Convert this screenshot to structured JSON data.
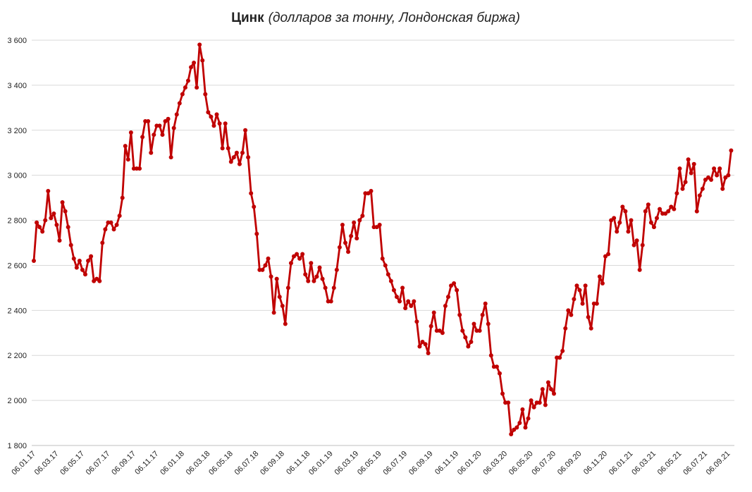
{
  "chart_data": {
    "type": "line",
    "title": "Цинк",
    "subtitle": "(долларов за тонну, Лондонская биржа)",
    "categories": [
      "06.01.17",
      null,
      null,
      null,
      null,
      null,
      null,
      null,
      "06.03.17",
      null,
      null,
      null,
      null,
      null,
      null,
      null,
      null,
      "06.05.17",
      null,
      null,
      null,
      null,
      null,
      null,
      null,
      null,
      "06.07.17",
      null,
      null,
      null,
      null,
      null,
      null,
      null,
      null,
      "06.09.17",
      null,
      null,
      null,
      null,
      null,
      null,
      null,
      "06.11.17",
      null,
      null,
      null,
      null,
      null,
      null,
      null,
      null,
      "06.01.18",
      null,
      null,
      null,
      null,
      null,
      null,
      null,
      null,
      "06.03.18",
      null,
      null,
      null,
      null,
      null,
      null,
      null,
      "06.05.18",
      null,
      null,
      null,
      null,
      null,
      null,
      null,
      null,
      "06.07.18",
      null,
      null,
      null,
      null,
      null,
      null,
      null,
      null,
      "06.09.18",
      null,
      null,
      null,
      null,
      null,
      null,
      null,
      null,
      "06.11.18",
      null,
      null,
      null,
      null,
      null,
      null,
      null,
      "06.01.19",
      null,
      null,
      null,
      null,
      null,
      null,
      null,
      null,
      "06.03.19",
      null,
      null,
      null,
      null,
      null,
      null,
      null,
      "06.05.19",
      null,
      null,
      null,
      null,
      null,
      null,
      null,
      null,
      "06.07.19",
      null,
      null,
      null,
      null,
      null,
      null,
      null,
      null,
      "06.09.19",
      null,
      null,
      null,
      null,
      null,
      null,
      null,
      null,
      "06.11.19",
      null,
      null,
      null,
      null,
      null,
      null,
      null,
      "06.01.20",
      null,
      null,
      null,
      null,
      null,
      null,
      null,
      null,
      "06.03.20",
      null,
      null,
      null,
      null,
      null,
      null,
      null,
      null,
      "06.05.20",
      null,
      null,
      null,
      null,
      null,
      null,
      null,
      "06.07.20",
      null,
      null,
      null,
      null,
      null,
      null,
      null,
      null,
      "06.09.20",
      null,
      null,
      null,
      null,
      null,
      null,
      null,
      null,
      "06.11.20",
      null,
      null,
      null,
      null,
      null,
      null,
      null,
      null,
      "06.01.21",
      null,
      null,
      null,
      null,
      null,
      null,
      null,
      "06.03.21",
      null,
      null,
      null,
      null,
      null,
      null,
      null,
      null,
      "06.05.21",
      null,
      null,
      null,
      null,
      null,
      null,
      null,
      null,
      "06.07.21",
      null,
      null,
      null,
      null,
      null,
      null,
      null,
      "06.09.21",
      null
    ],
    "values": [
      2620,
      2790,
      2770,
      2750,
      2800,
      2930,
      2810,
      2830,
      2780,
      2710,
      2880,
      2840,
      2770,
      2690,
      2630,
      2590,
      2620,
      2580,
      2560,
      2620,
      2640,
      2530,
      2540,
      2530,
      2700,
      2760,
      2790,
      2790,
      2760,
      2780,
      2820,
      2900,
      3130,
      3070,
      3190,
      3030,
      3030,
      3030,
      3170,
      3240,
      3240,
      3100,
      3180,
      3220,
      3220,
      3180,
      3240,
      3250,
      3080,
      3210,
      3270,
      3320,
      3360,
      3390,
      3420,
      3480,
      3500,
      3390,
      3580,
      3510,
      3360,
      3280,
      3260,
      3220,
      3270,
      3230,
      3120,
      3230,
      3120,
      3060,
      3080,
      3100,
      3050,
      3100,
      3200,
      3080,
      2920,
      2860,
      2740,
      2580,
      2580,
      2600,
      2630,
      2550,
      2390,
      2540,
      2460,
      2420,
      2340,
      2500,
      2610,
      2640,
      2650,
      2630,
      2650,
      2560,
      2530,
      2610,
      2530,
      2550,
      2590,
      2540,
      2500,
      2440,
      2440,
      2500,
      2580,
      2680,
      2780,
      2700,
      2660,
      2730,
      2790,
      2720,
      2800,
      2820,
      2920,
      2920,
      2930,
      2770,
      2770,
      2780,
      2630,
      2600,
      2560,
      2530,
      2490,
      2460,
      2440,
      2500,
      2410,
      2440,
      2420,
      2440,
      2350,
      2240,
      2260,
      2250,
      2210,
      2330,
      2390,
      2310,
      2310,
      2300,
      2420,
      2460,
      2510,
      2520,
      2490,
      2380,
      2310,
      2280,
      2240,
      2260,
      2340,
      2310,
      2310,
      2380,
      2430,
      2340,
      2200,
      2150,
      2150,
      2120,
      2030,
      1990,
      1990,
      1850,
      1870,
      1880,
      1900,
      1960,
      1880,
      1920,
      2000,
      1970,
      1990,
      1990,
      2050,
      1980,
      2080,
      2050,
      2030,
      2190,
      2190,
      2220,
      2320,
      2400,
      2380,
      2450,
      2510,
      2490,
      2430,
      2510,
      2370,
      2320,
      2430,
      2430,
      2550,
      2520,
      2640,
      2650,
      2800,
      2810,
      2750,
      2790,
      2860,
      2840,
      2750,
      2800,
      2690,
      2710,
      2580,
      2690,
      2840,
      2870,
      2790,
      2770,
      2810,
      2850,
      2830,
      2830,
      2840,
      2860,
      2850,
      2920,
      3030,
      2940,
      2970,
      3070,
      3010,
      3050,
      2840,
      2910,
      2940,
      2980,
      2990,
      2980,
      3030,
      3000,
      3030,
      2940,
      2990,
      3000,
      3110
    ],
    "color": "#c00000",
    "ylim": [
      1800,
      3600
    ],
    "yticks": [
      {
        "value": 1800,
        "label": "1 800"
      },
      {
        "value": 2000,
        "label": "2 000"
      },
      {
        "value": 2200,
        "label": "2 200"
      },
      {
        "value": 2400,
        "label": "2 400"
      },
      {
        "value": 2600,
        "label": "2 600"
      },
      {
        "value": 2800,
        "label": "2 800"
      },
      {
        "value": 3000,
        "label": "3 000"
      },
      {
        "value": 3200,
        "label": "3 200"
      },
      {
        "value": 3400,
        "label": "3 400"
      },
      {
        "value": 3600,
        "label": "3 600"
      }
    ],
    "grid": true
  }
}
